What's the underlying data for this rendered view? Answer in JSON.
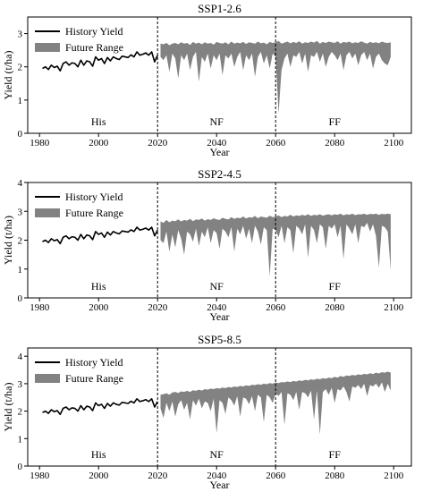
{
  "chart_data": [
    {
      "type": "area",
      "title": "SSP1-2.6",
      "xlabel": "Year",
      "ylabel": "Yield (t/ha)",
      "xlim": [
        1976,
        2106
      ],
      "ylim": [
        0,
        3.5
      ],
      "xticks": [
        1980,
        2000,
        2020,
        2040,
        2060,
        2080,
        2100
      ],
      "yticks": [
        0,
        1,
        2,
        3
      ],
      "vlines": [
        2020,
        2060
      ],
      "legend": {
        "placement": "top-left",
        "entries": [
          "History Yield",
          "Future Range"
        ]
      },
      "period_labels": [
        {
          "x": 2000,
          "text": "His"
        },
        {
          "x": 2040,
          "text": "NF"
        },
        {
          "x": 2080,
          "text": "FF"
        }
      ],
      "history": {
        "name": "History Yield",
        "x": [
          1981,
          1982,
          1983,
          1984,
          1985,
          1986,
          1987,
          1988,
          1989,
          1990,
          1991,
          1992,
          1993,
          1994,
          1995,
          1996,
          1997,
          1998,
          1999,
          2000,
          2001,
          2002,
          2003,
          2004,
          2005,
          2006,
          2007,
          2008,
          2009,
          2010,
          2011,
          2012,
          2013,
          2014,
          2015,
          2016,
          2017,
          2018,
          2019,
          2020
        ],
        "y": [
          1.95,
          2.0,
          1.92,
          2.05,
          1.98,
          2.02,
          1.88,
          2.1,
          2.15,
          2.05,
          2.12,
          2.1,
          2.0,
          2.2,
          2.05,
          2.18,
          2.15,
          2.02,
          2.3,
          2.2,
          2.25,
          2.1,
          2.28,
          2.18,
          2.3,
          2.25,
          2.22,
          2.32,
          2.3,
          2.28,
          2.36,
          2.3,
          2.45,
          2.35,
          2.38,
          2.42,
          2.35,
          2.45,
          2.15,
          2.35
        ]
      },
      "future": {
        "name": "Future Range",
        "x": [
          2021,
          2022,
          2023,
          2024,
          2025,
          2026,
          2027,
          2028,
          2029,
          2030,
          2031,
          2032,
          2033,
          2034,
          2035,
          2036,
          2037,
          2038,
          2039,
          2040,
          2041,
          2042,
          2043,
          2044,
          2045,
          2046,
          2047,
          2048,
          2049,
          2050,
          2051,
          2052,
          2053,
          2054,
          2055,
          2056,
          2057,
          2058,
          2059,
          2060,
          2061,
          2062,
          2063,
          2064,
          2065,
          2066,
          2067,
          2068,
          2069,
          2070,
          2071,
          2072,
          2073,
          2074,
          2075,
          2076,
          2077,
          2078,
          2079,
          2080,
          2081,
          2082,
          2083,
          2084,
          2085,
          2086,
          2087,
          2088,
          2089,
          2090,
          2091,
          2092,
          2093,
          2094,
          2095,
          2096,
          2097,
          2098,
          2099
        ],
        "upper": [
          2.7,
          2.68,
          2.72,
          2.65,
          2.7,
          2.72,
          2.68,
          2.74,
          2.7,
          2.72,
          2.66,
          2.75,
          2.7,
          2.73,
          2.68,
          2.74,
          2.7,
          2.72,
          2.67,
          2.75,
          2.72,
          2.7,
          2.74,
          2.68,
          2.76,
          2.7,
          2.73,
          2.71,
          2.75,
          2.69,
          2.74,
          2.72,
          2.7,
          2.76,
          2.71,
          2.73,
          2.68,
          2.75,
          2.72,
          2.74,
          2.78,
          2.7,
          2.73,
          2.76,
          2.71,
          2.75,
          2.72,
          2.77,
          2.7,
          2.74,
          2.72,
          2.76,
          2.73,
          2.78,
          2.7,
          2.75,
          2.72,
          2.76,
          2.74,
          2.72,
          2.77,
          2.7,
          2.75,
          2.73,
          2.76,
          2.71,
          2.74,
          2.72,
          2.77,
          2.73,
          2.7,
          2.75,
          2.72,
          2.74,
          2.71,
          2.76,
          2.73,
          2.72,
          2.74
        ],
        "lower": [
          2.3,
          2.2,
          2.35,
          1.85,
          2.4,
          2.25,
          1.65,
          2.35,
          2.2,
          2.4,
          1.9,
          2.3,
          2.45,
          1.55,
          2.3,
          2.15,
          2.4,
          1.95,
          2.35,
          2.2,
          2.4,
          1.75,
          2.35,
          2.25,
          2.4,
          2.0,
          2.3,
          2.45,
          1.9,
          2.35,
          2.2,
          2.4,
          1.7,
          2.3,
          2.45,
          2.1,
          2.35,
          1.95,
          2.4,
          2.3,
          0.6,
          1.9,
          2.25,
          2.4,
          2.0,
          2.35,
          2.3,
          2.45,
          2.1,
          2.4,
          1.85,
          2.35,
          2.3,
          2.45,
          2.15,
          2.4,
          2.0,
          2.3,
          2.45,
          2.35,
          2.2,
          2.4,
          1.9,
          2.35,
          2.45,
          2.25,
          2.4,
          2.05,
          2.35,
          2.45,
          2.2,
          2.4,
          1.95,
          2.3,
          2.4,
          2.2,
          2.1,
          2.05,
          2.3
        ]
      }
    },
    {
      "type": "area",
      "title": "SSP2-4.5",
      "xlabel": "Year",
      "ylabel": "Yield (t/ha)",
      "xlim": [
        1976,
        2106
      ],
      "ylim": [
        0,
        4
      ],
      "xticks": [
        1980,
        2000,
        2020,
        2040,
        2060,
        2080,
        2100
      ],
      "yticks": [
        0,
        1,
        2,
        3,
        4
      ],
      "vlines": [
        2020,
        2060
      ],
      "legend": {
        "placement": "top-left",
        "entries": [
          "History Yield",
          "Future Range"
        ]
      },
      "period_labels": [
        {
          "x": 2000,
          "text": "His"
        },
        {
          "x": 2040,
          "text": "NF"
        },
        {
          "x": 2080,
          "text": "FF"
        }
      ],
      "history": {
        "name": "History Yield",
        "x": [
          1981,
          1982,
          1983,
          1984,
          1985,
          1986,
          1987,
          1988,
          1989,
          1990,
          1991,
          1992,
          1993,
          1994,
          1995,
          1996,
          1997,
          1998,
          1999,
          2000,
          2001,
          2002,
          2003,
          2004,
          2005,
          2006,
          2007,
          2008,
          2009,
          2010,
          2011,
          2012,
          2013,
          2014,
          2015,
          2016,
          2017,
          2018,
          2019,
          2020
        ],
        "y": [
          1.95,
          2.0,
          1.92,
          2.05,
          1.98,
          2.02,
          1.88,
          2.1,
          2.15,
          2.05,
          2.12,
          2.1,
          2.0,
          2.2,
          2.05,
          2.18,
          2.15,
          2.02,
          2.3,
          2.2,
          2.25,
          2.1,
          2.28,
          2.18,
          2.3,
          2.25,
          2.22,
          2.32,
          2.3,
          2.28,
          2.36,
          2.3,
          2.45,
          2.35,
          2.38,
          2.42,
          2.35,
          2.45,
          2.15,
          2.35
        ]
      },
      "future": {
        "name": "Future Range",
        "x": [
          2021,
          2022,
          2023,
          2024,
          2025,
          2026,
          2027,
          2028,
          2029,
          2030,
          2031,
          2032,
          2033,
          2034,
          2035,
          2036,
          2037,
          2038,
          2039,
          2040,
          2041,
          2042,
          2043,
          2044,
          2045,
          2046,
          2047,
          2048,
          2049,
          2050,
          2051,
          2052,
          2053,
          2054,
          2055,
          2056,
          2057,
          2058,
          2059,
          2060,
          2061,
          2062,
          2063,
          2064,
          2065,
          2066,
          2067,
          2068,
          2069,
          2070,
          2071,
          2072,
          2073,
          2074,
          2075,
          2076,
          2077,
          2078,
          2079,
          2080,
          2081,
          2082,
          2083,
          2084,
          2085,
          2086,
          2087,
          2088,
          2089,
          2090,
          2091,
          2092,
          2093,
          2094,
          2095,
          2096,
          2097,
          2098,
          2099
        ],
        "upper": [
          2.65,
          2.6,
          2.7,
          2.62,
          2.68,
          2.66,
          2.72,
          2.65,
          2.7,
          2.68,
          2.74,
          2.66,
          2.72,
          2.7,
          2.75,
          2.68,
          2.73,
          2.7,
          2.76,
          2.72,
          2.7,
          2.78,
          2.74,
          2.72,
          2.8,
          2.74,
          2.78,
          2.76,
          2.82,
          2.75,
          2.8,
          2.78,
          2.84,
          2.76,
          2.82,
          2.8,
          2.78,
          2.85,
          2.8,
          2.82,
          2.86,
          2.8,
          2.84,
          2.82,
          2.88,
          2.82,
          2.86,
          2.84,
          2.88,
          2.85,
          2.9,
          2.84,
          2.88,
          2.86,
          2.9,
          2.85,
          2.88,
          2.9,
          2.86,
          2.9,
          2.88,
          2.92,
          2.86,
          2.9,
          2.88,
          2.92,
          2.87,
          2.9,
          2.89,
          2.92,
          2.88,
          2.91,
          2.9,
          2.92,
          2.88,
          2.91,
          2.9,
          2.92,
          2.9
        ],
        "lower": [
          2.0,
          1.9,
          2.3,
          1.6,
          2.2,
          1.75,
          2.35,
          2.05,
          1.5,
          2.3,
          2.2,
          1.95,
          2.4,
          1.8,
          2.3,
          2.1,
          2.45,
          1.9,
          2.35,
          2.25,
          1.7,
          2.4,
          2.3,
          2.1,
          2.45,
          1.6,
          2.4,
          2.2,
          2.5,
          2.05,
          2.4,
          1.9,
          2.5,
          2.3,
          1.85,
          2.45,
          2.35,
          0.75,
          2.4,
          2.35,
          2.1,
          2.5,
          1.9,
          2.45,
          2.35,
          1.55,
          2.5,
          2.4,
          2.2,
          2.55,
          1.4,
          2.5,
          2.35,
          1.9,
          2.55,
          2.45,
          1.7,
          2.5,
          2.4,
          2.55,
          2.1,
          2.5,
          1.35,
          2.55,
          2.4,
          2.2,
          2.55,
          1.9,
          2.5,
          2.45,
          2.6,
          2.3,
          2.55,
          2.15,
          1.05,
          2.5,
          2.45,
          2.3,
          0.95
        ]
      }
    },
    {
      "type": "area",
      "title": "SSP5-8.5",
      "xlabel": "Year",
      "ylabel": "Yield (t/ha)",
      "xlim": [
        1976,
        2106
      ],
      "ylim": [
        0,
        4.3
      ],
      "xticks": [
        1980,
        2000,
        2020,
        2040,
        2060,
        2080,
        2100
      ],
      "yticks": [
        0,
        1,
        2,
        3,
        4
      ],
      "vlines": [
        2020,
        2060
      ],
      "legend": {
        "placement": "top-left",
        "entries": [
          "History Yield",
          "Future Range"
        ]
      },
      "period_labels": [
        {
          "x": 2000,
          "text": "His"
        },
        {
          "x": 2040,
          "text": "NF"
        },
        {
          "x": 2080,
          "text": "FF"
        }
      ],
      "history": {
        "name": "History Yield",
        "x": [
          1981,
          1982,
          1983,
          1984,
          1985,
          1986,
          1987,
          1988,
          1989,
          1990,
          1991,
          1992,
          1993,
          1994,
          1995,
          1996,
          1997,
          1998,
          1999,
          2000,
          2001,
          2002,
          2003,
          2004,
          2005,
          2006,
          2007,
          2008,
          2009,
          2010,
          2011,
          2012,
          2013,
          2014,
          2015,
          2016,
          2017,
          2018,
          2019,
          2020
        ],
        "y": [
          1.95,
          2.0,
          1.92,
          2.05,
          1.98,
          2.02,
          1.88,
          2.1,
          2.15,
          2.05,
          2.12,
          2.1,
          2.0,
          2.2,
          2.05,
          2.18,
          2.15,
          2.02,
          2.3,
          2.2,
          2.25,
          2.1,
          2.28,
          2.18,
          2.3,
          2.25,
          2.22,
          2.32,
          2.3,
          2.28,
          2.36,
          2.3,
          2.45,
          2.35,
          2.38,
          2.42,
          2.35,
          2.45,
          2.15,
          2.35
        ]
      },
      "future": {
        "name": "Future Range",
        "x": [
          2021,
          2022,
          2023,
          2024,
          2025,
          2026,
          2027,
          2028,
          2029,
          2030,
          2031,
          2032,
          2033,
          2034,
          2035,
          2036,
          2037,
          2038,
          2039,
          2040,
          2041,
          2042,
          2043,
          2044,
          2045,
          2046,
          2047,
          2048,
          2049,
          2050,
          2051,
          2052,
          2053,
          2054,
          2055,
          2056,
          2057,
          2058,
          2059,
          2060,
          2061,
          2062,
          2063,
          2064,
          2065,
          2066,
          2067,
          2068,
          2069,
          2070,
          2071,
          2072,
          2073,
          2074,
          2075,
          2076,
          2077,
          2078,
          2079,
          2080,
          2081,
          2082,
          2083,
          2084,
          2085,
          2086,
          2087,
          2088,
          2089,
          2090,
          2091,
          2092,
          2093,
          2094,
          2095,
          2096,
          2097,
          2098,
          2099
        ],
        "upper": [
          2.6,
          2.62,
          2.65,
          2.6,
          2.68,
          2.7,
          2.66,
          2.72,
          2.7,
          2.74,
          2.7,
          2.76,
          2.74,
          2.78,
          2.75,
          2.8,
          2.78,
          2.82,
          2.8,
          2.84,
          2.82,
          2.86,
          2.84,
          2.88,
          2.86,
          2.9,
          2.88,
          2.92,
          2.9,
          2.94,
          2.92,
          2.96,
          2.95,
          2.98,
          2.96,
          3.0,
          2.98,
          3.02,
          3.0,
          3.04,
          3.02,
          3.06,
          3.05,
          3.08,
          3.06,
          3.1,
          3.08,
          3.12,
          3.1,
          3.14,
          3.12,
          3.16,
          3.14,
          3.18,
          3.16,
          3.2,
          3.18,
          3.22,
          3.2,
          3.25,
          3.22,
          3.28,
          3.25,
          3.3,
          3.28,
          3.32,
          3.3,
          3.34,
          3.32,
          3.36,
          3.34,
          3.38,
          3.35,
          3.4,
          3.37,
          3.42,
          3.4,
          3.44,
          3.4
        ],
        "lower": [
          2.1,
          1.75,
          2.3,
          2.0,
          2.35,
          1.8,
          2.25,
          2.4,
          2.05,
          2.3,
          1.7,
          2.4,
          2.2,
          2.45,
          2.1,
          2.35,
          2.3,
          2.0,
          2.45,
          1.2,
          2.4,
          2.3,
          1.9,
          2.5,
          2.4,
          2.2,
          2.55,
          1.8,
          2.5,
          2.45,
          2.25,
          2.55,
          2.0,
          2.6,
          2.5,
          1.6,
          2.6,
          2.5,
          2.3,
          2.65,
          2.55,
          2.7,
          1.5,
          2.65,
          2.6,
          2.4,
          2.7,
          2.05,
          2.7,
          2.65,
          2.5,
          2.75,
          1.7,
          2.75,
          1.15,
          2.7,
          2.8,
          2.6,
          2.85,
          2.3,
          2.8,
          2.75,
          2.9,
          2.7,
          2.35,
          2.9,
          2.85,
          2.95,
          2.8,
          3.0,
          2.55,
          2.95,
          2.9,
          3.0,
          2.85,
          3.05,
          2.7,
          3.0,
          2.75
        ]
      }
    }
  ]
}
